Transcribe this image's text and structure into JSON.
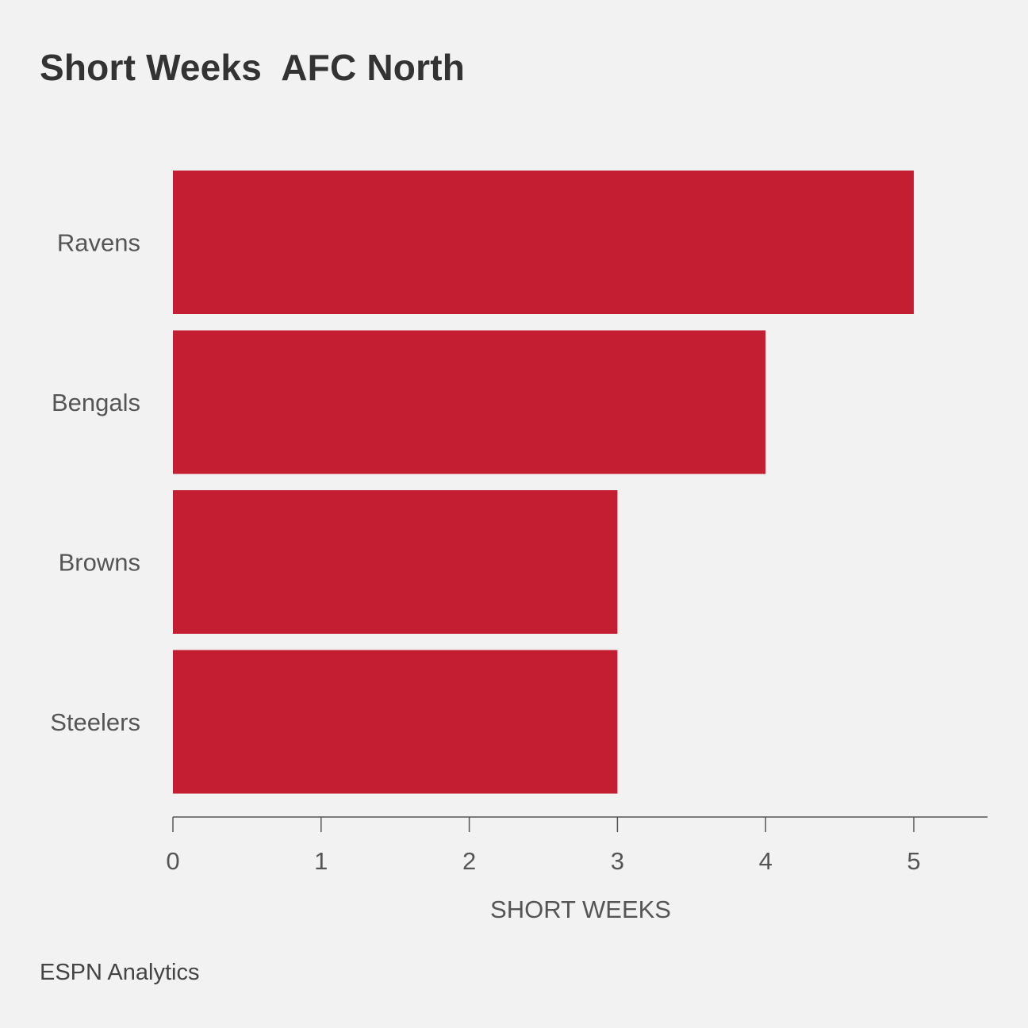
{
  "title": "Short Weeks  AFC North",
  "source": "ESPN Analytics",
  "colors": {
    "bar": "#c41e32",
    "axis": "#555555",
    "label": "#555555",
    "title": "#333333",
    "background": "#f2f2f2"
  },
  "chart_data": {
    "type": "bar",
    "orientation": "horizontal",
    "title": "Short Weeks  AFC North",
    "xlabel": "SHORT WEEKS",
    "ylabel": "",
    "categories": [
      "Ravens",
      "Bengals",
      "Browns",
      "Steelers"
    ],
    "values": [
      5,
      4,
      3,
      3
    ],
    "xlim": [
      0,
      5.5
    ],
    "xticks": [
      0,
      1,
      2,
      3,
      4,
      5
    ],
    "grid": false,
    "legend": "none"
  }
}
